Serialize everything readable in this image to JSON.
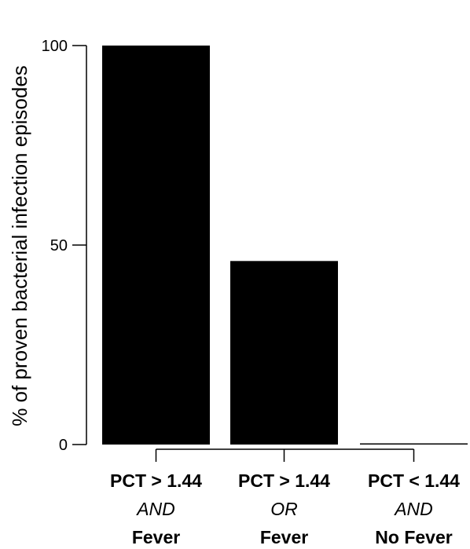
{
  "chart_data": {
    "type": "bar",
    "ylabel": "% of proven bacterial infection episodes",
    "ylim": [
      0,
      100
    ],
    "yticks": [
      0,
      50,
      100
    ],
    "categories": [
      {
        "line1": "PCT > 1.44",
        "line2": "AND",
        "line3": "Fever"
      },
      {
        "line1": "PCT > 1.44",
        "line2": "OR",
        "line3": "Fever"
      },
      {
        "line1": "PCT < 1.44",
        "line2": "AND",
        "line3": "No Fever"
      }
    ],
    "values": [
      100,
      46,
      0
    ],
    "bar_color": "#000000",
    "grid": false,
    "legend": "none"
  }
}
